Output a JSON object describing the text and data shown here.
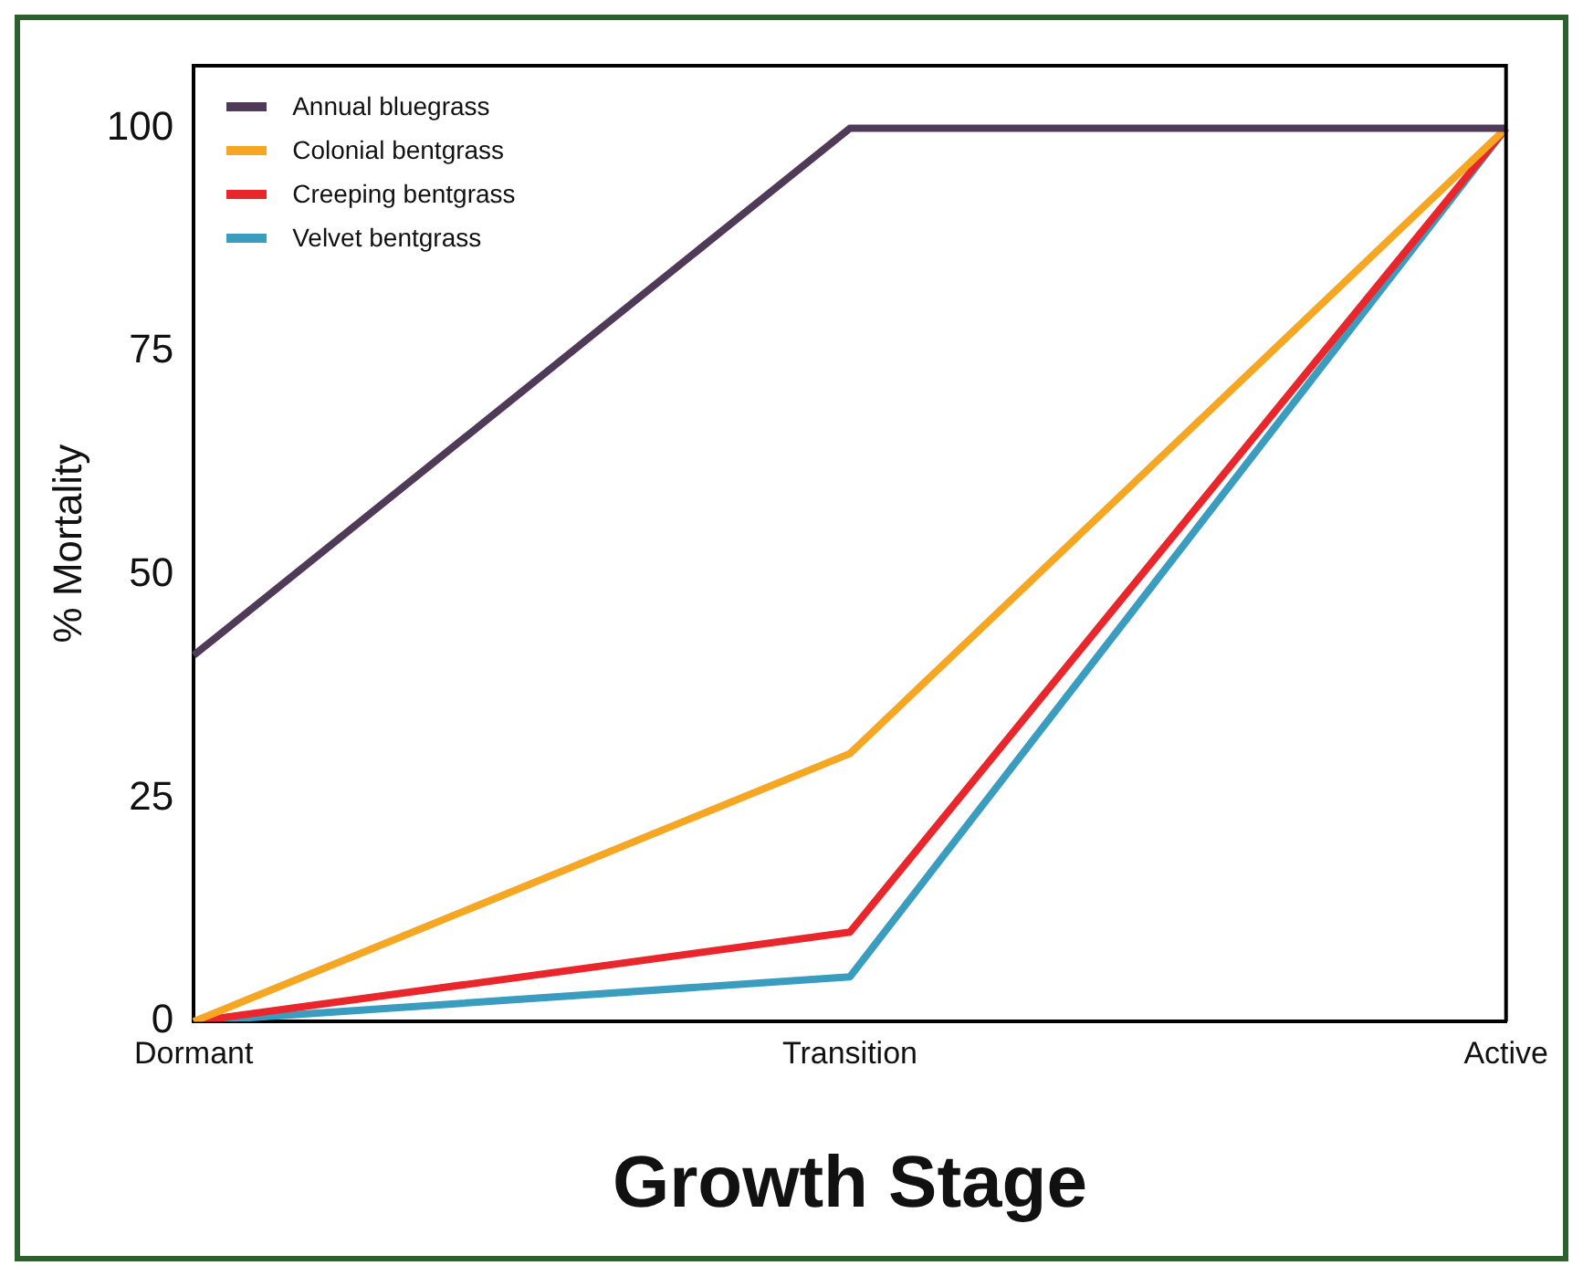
{
  "chart_data": {
    "type": "line",
    "xlabel": "Growth Stage",
    "ylabel": "% Mortality",
    "categories": [
      "Dormant",
      "Transition",
      "Active"
    ],
    "series": [
      {
        "name": "Annual bluegrass",
        "color": "#4f3a58",
        "values": [
          41,
          100,
          100
        ]
      },
      {
        "name": "Colonial bentgrass",
        "color": "#f5a623",
        "values": [
          0,
          30,
          100
        ]
      },
      {
        "name": "Creeping bentgrass",
        "color": "#e8262b",
        "values": [
          0,
          10,
          100
        ]
      },
      {
        "name": "Velvet bentgrass",
        "color": "#3a9dc0",
        "values": [
          0,
          5,
          100
        ]
      }
    ],
    "ylim": [
      0,
      107
    ],
    "yticks": [
      0,
      25,
      50,
      75,
      100
    ],
    "grid": false,
    "legend": "top left",
    "marker": "none",
    "line_style": "solid"
  }
}
